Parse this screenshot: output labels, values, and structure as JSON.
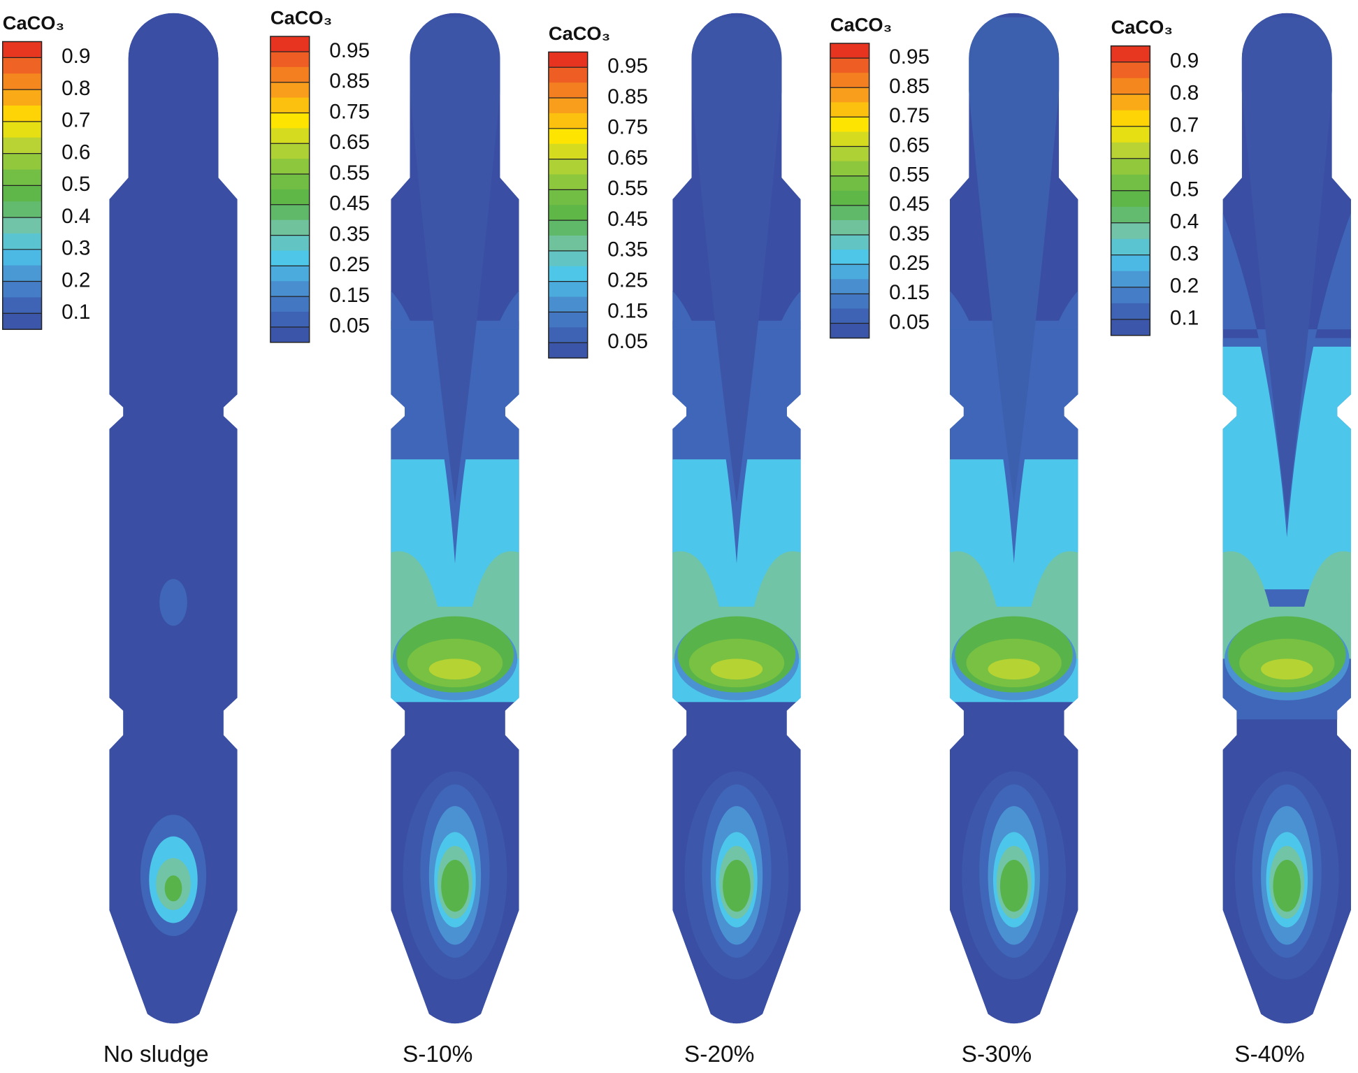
{
  "colormap": [
    "#3a4fa3",
    "#3f66b8",
    "#4a92d2",
    "#4cc6ea",
    "#72c4a6",
    "#58b44a",
    "#79c142",
    "#b6d334",
    "#ffe500",
    "#f9a11b",
    "#f06a24",
    "#e3201f"
  ],
  "panels": [
    {
      "label": "No sludge",
      "legend": {
        "title": "CaCO₃",
        "ticks": [
          0.9,
          0.8,
          0.7,
          0.6,
          0.5,
          0.4,
          0.3,
          0.2,
          0.1
        ]
      }
    },
    {
      "label": "S-10%",
      "legend": {
        "title": "CaCO₃",
        "ticks": [
          0.95,
          0.85,
          0.75,
          0.65,
          0.55,
          0.45,
          0.35,
          0.25,
          0.15,
          0.05
        ]
      }
    },
    {
      "label": "S-20%",
      "legend": {
        "title": "CaCO₃",
        "ticks": [
          0.95,
          0.85,
          0.75,
          0.65,
          0.55,
          0.45,
          0.35,
          0.25,
          0.15,
          0.05
        ]
      }
    },
    {
      "label": "S-30%",
      "legend": {
        "title": "CaCO₃",
        "ticks": [
          0.95,
          0.85,
          0.75,
          0.65,
          0.55,
          0.45,
          0.35,
          0.25,
          0.15,
          0.05
        ]
      }
    },
    {
      "label": "S-40%",
      "legend": {
        "title": "CaCO₃",
        "ticks": [
          0.9,
          0.8,
          0.7,
          0.6,
          0.5,
          0.4,
          0.3,
          0.2,
          0.1
        ]
      }
    }
  ]
}
